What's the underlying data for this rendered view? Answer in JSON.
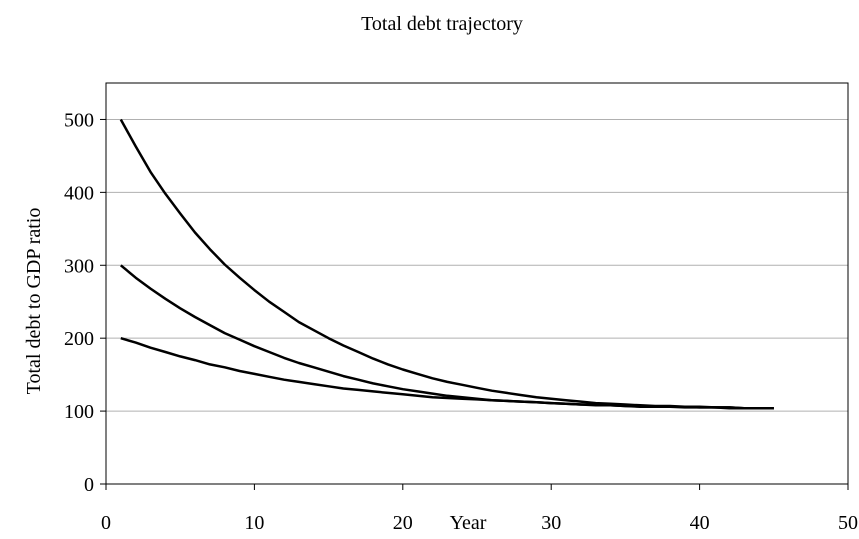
{
  "chart_data": {
    "type": "line",
    "title": "Total debt trajectory",
    "xlabel": "Year",
    "ylabel": "Total debt to GDP ratio",
    "xlim": [
      0,
      50
    ],
    "ylim": [
      0,
      550
    ],
    "x_ticks": [
      "0",
      "10",
      "20",
      "30",
      "40",
      "50"
    ],
    "y_ticks": [
      "0",
      "100",
      "200",
      "300",
      "400",
      "500"
    ],
    "grid": "horizontal",
    "legend": "none",
    "line_color": "#000000",
    "grid_color": "#b0b0b0",
    "x": [
      1,
      2,
      3,
      4,
      5,
      6,
      7,
      8,
      9,
      10,
      11,
      12,
      13,
      14,
      15,
      16,
      17,
      18,
      19,
      20,
      21,
      22,
      23,
      24,
      25,
      26,
      27,
      28,
      29,
      30,
      31,
      32,
      33,
      34,
      35,
      36,
      37,
      38,
      39,
      40,
      41,
      42,
      43,
      44,
      45
    ],
    "series": [
      {
        "values": [
          500,
          463,
          428,
          398,
          371,
          345,
          322,
          301,
          283,
          266,
          250,
          236,
          222,
          211,
          200,
          190,
          181,
          172,
          164,
          157,
          151,
          145,
          140,
          136,
          132,
          128,
          125,
          122,
          119,
          117,
          115,
          113,
          111,
          110,
          109,
          108,
          107,
          107,
          106,
          106,
          105,
          105,
          104,
          104,
          104
        ]
      },
      {
        "values": [
          300,
          283,
          268,
          254,
          241,
          229,
          218,
          207,
          198,
          189,
          181,
          173,
          166,
          160,
          154,
          148,
          143,
          138,
          134,
          130,
          127,
          124,
          121,
          119,
          117,
          115,
          114,
          113,
          112,
          111,
          110,
          109,
          108,
          108,
          107,
          106,
          106,
          106,
          105,
          105,
          105,
          104,
          104,
          104,
          104
        ]
      },
      {
        "values": [
          200,
          194,
          187,
          181,
          175,
          170,
          164,
          160,
          155,
          151,
          147,
          143,
          140,
          137,
          134,
          131,
          129,
          127,
          125,
          123,
          121,
          119,
          118,
          117,
          116,
          115,
          114,
          113,
          112,
          111,
          110,
          109,
          109,
          108,
          107,
          107,
          106,
          106,
          106,
          105,
          105,
          105,
          104,
          104,
          104
        ]
      }
    ]
  }
}
